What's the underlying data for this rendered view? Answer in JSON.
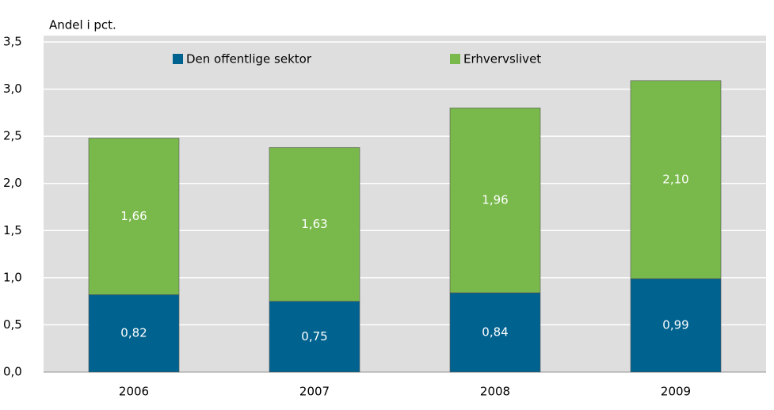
{
  "chart_data": {
    "type": "stacked_bar",
    "y_axis_label": "Andel i pct.",
    "categories": [
      "2006",
      "2007",
      "2008",
      "2009"
    ],
    "series": [
      {
        "name": "Den offentlige sektor",
        "color": "#00628f",
        "values": [
          0.82,
          0.75,
          0.84,
          0.99
        ],
        "value_labels": [
          "0,82",
          "0,75",
          "0,84",
          "0,99"
        ]
      },
      {
        "name": "Erhvervslivet",
        "color": "#79b94b",
        "values": [
          1.66,
          1.63,
          1.96,
          2.1
        ],
        "value_labels": [
          "1,66",
          "1,63",
          "1,96",
          "2,10"
        ]
      }
    ],
    "ylim": [
      0,
      3.5
    ],
    "yticks": [
      {
        "value": 0,
        "label": "0,0"
      },
      {
        "value": 0.5,
        "label": "0,5"
      },
      {
        "value": 1,
        "label": "1,0"
      },
      {
        "value": 1.5,
        "label": "1,5"
      },
      {
        "value": 2,
        "label": "2,0"
      },
      {
        "value": 2.5,
        "label": "2,5"
      },
      {
        "value": 3,
        "label": "3,0"
      },
      {
        "value": 3.5,
        "label": "3,5"
      }
    ],
    "grid": true
  }
}
